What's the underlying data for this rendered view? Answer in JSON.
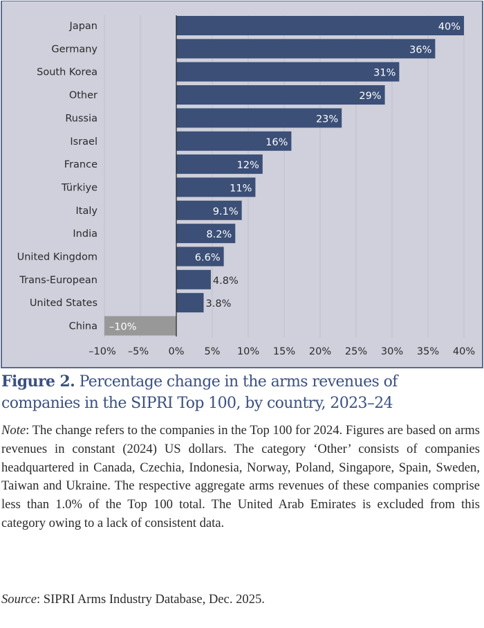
{
  "chart_data": {
    "type": "bar",
    "orientation": "horizontal",
    "title": "Figure 2. Percentage change in the arms revenues of companies in the SIPRI Top 100, by country, 2023–24",
    "xlabel": "",
    "ylabel": "",
    "categories": [
      "Japan",
      "Germany",
      "South Korea",
      "Other",
      "Russia",
      "Israel",
      "France",
      "Türkiye",
      "Italy",
      "India",
      "United Kingdom",
      "Trans-European",
      "United States",
      "China"
    ],
    "values": [
      40,
      36,
      31,
      29,
      23,
      16,
      12,
      11,
      9.1,
      8.2,
      6.6,
      4.8,
      3.8,
      -10
    ],
    "data_labels": [
      "40%",
      "36%",
      "31%",
      "29%",
      "23%",
      "16%",
      "12%",
      "11%",
      "9.1%",
      "8.2%",
      "6.6%",
      "4.8%",
      "3.8%",
      "–10%"
    ],
    "xlim": [
      -10,
      40
    ],
    "xticks": [
      -10,
      -5,
      0,
      5,
      10,
      15,
      20,
      25,
      30,
      35,
      40
    ],
    "xtick_labels": [
      "–10%",
      "–5%",
      "0%",
      "5%",
      "10%",
      "15%",
      "20%",
      "25%",
      "30%",
      "35%",
      "40%"
    ],
    "grid": "vertical",
    "legend": "none",
    "colors": {
      "positive": "#3b4f77",
      "negative": "#989898",
      "background": "#cfd0dc",
      "gridline": "#bfc0cc",
      "zero_line": "#222222"
    }
  },
  "caption": {
    "figure_label": "Figure 2.",
    "text": " Percentage change in the arms revenues of companies in the SIPRI Top 100, by country, 2023–24"
  },
  "note": {
    "label": "Note",
    "text": ": The change refers to the companies in the Top 100 for 2024. Figures are based on arms revenues in constant (2024) US dollars. The category ‘Other’ consists of companies headquartered in Canada, Czechia, Indonesia, Norway, Poland, Singapore, Spain, Sweden, Taiwan and Ukraine. The respective aggregate arms revenues of these companies comprise less than 1.0% of the Top 100 total. The United Arab Emirates is excluded from this category owing to a lack of consistent data."
  },
  "source": {
    "label": "Source",
    "text": ": SIPRI Arms Industry Database, Dec. 2025."
  }
}
